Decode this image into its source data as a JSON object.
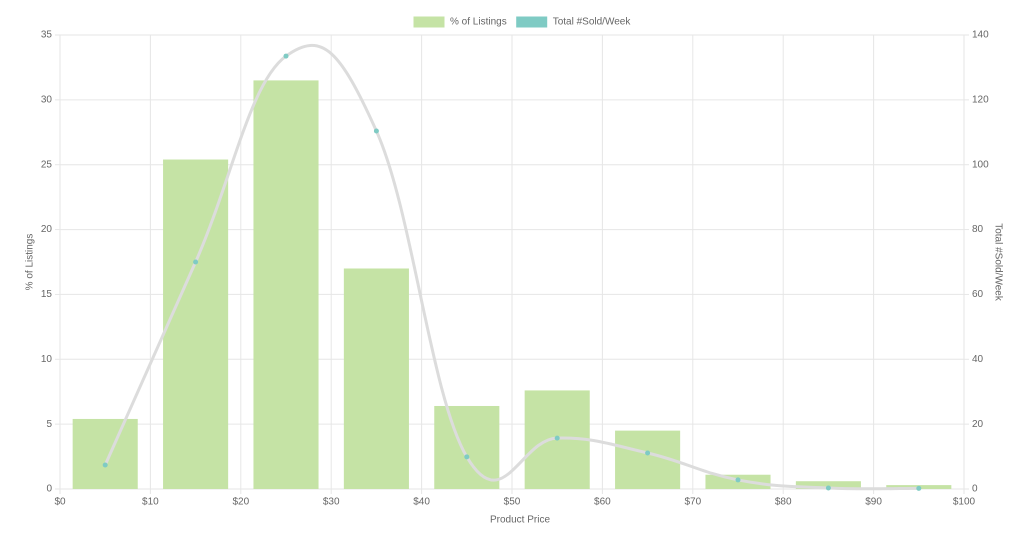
{
  "chart_data": {
    "type": "bar",
    "x_label": "Product Price",
    "y_label": "% of Listings",
    "y2_label": "Total #Sold/Week",
    "x": [
      5,
      15,
      25,
      35,
      45,
      55,
      65,
      75,
      85,
      95
    ],
    "series": [
      {
        "name": "% of Listings",
        "type": "bar",
        "color": "#c5e3a5",
        "values": [
          5.4,
          25.4,
          31.5,
          17.0,
          6.4,
          7.6,
          4.5,
          1.1,
          0.6,
          0.3
        ]
      },
      {
        "name": "Total #Sold/Week",
        "type": "line",
        "axis": "y2",
        "color": "#7fcbc4",
        "line_color": "#dcdcdc",
        "values": [
          7.4,
          70,
          133.5,
          110.4,
          9.9,
          15.7,
          11.1,
          2.8,
          0.3,
          0.2
        ]
      }
    ],
    "xlim": [
      0,
      100
    ],
    "xticks": [
      {
        "value": 0,
        "label": "$0"
      },
      {
        "value": 10,
        "label": "$10"
      },
      {
        "value": 20,
        "label": "$20"
      },
      {
        "value": 30,
        "label": "$30"
      },
      {
        "value": 40,
        "label": "$40"
      },
      {
        "value": 50,
        "label": "$50"
      },
      {
        "value": 60,
        "label": "$60"
      },
      {
        "value": 70,
        "label": "$70"
      },
      {
        "value": 80,
        "label": "$80"
      },
      {
        "value": 90,
        "label": "$90"
      },
      {
        "value": 100,
        "label": "$100"
      }
    ],
    "ylim": [
      0,
      35
    ],
    "yticks": [
      0,
      5,
      10,
      15,
      20,
      25,
      30,
      35
    ],
    "y2lim": [
      0,
      140
    ],
    "y2ticks": [
      0,
      20,
      40,
      60,
      80,
      100,
      120,
      140
    ],
    "grid": true,
    "legend": "top"
  }
}
